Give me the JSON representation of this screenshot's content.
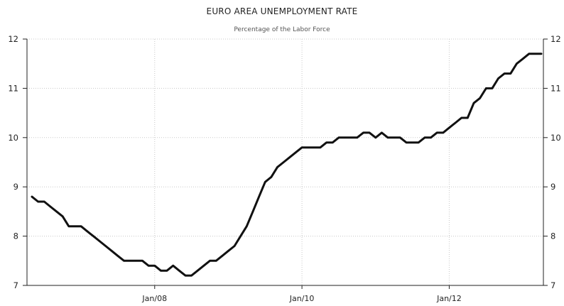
{
  "chart_data": {
    "type": "line",
    "title": "EURO AREA UNEMPLOYMENT RATE",
    "subtitle": "Percentage of the Labor Force",
    "xlabel": "",
    "ylabel": "",
    "ylim": [
      7,
      12
    ],
    "yticks": [
      7,
      8,
      9,
      10,
      11,
      12
    ],
    "xticks": [
      "Jan/08",
      "Jan/10",
      "Jan/12"
    ],
    "grid": true,
    "legend": "none",
    "line_color": "#111111",
    "series": [
      {
        "values": [
          8.8,
          8.7,
          8.7,
          8.6,
          8.5,
          8.4,
          8.2,
          8.2,
          8.2,
          8.1,
          8.0,
          7.9,
          7.8,
          7.7,
          7.6,
          7.5,
          7.5,
          7.5,
          7.5,
          7.4,
          7.4,
          7.3,
          7.3,
          7.4,
          7.3,
          7.2,
          7.2,
          7.3,
          7.4,
          7.5,
          7.5,
          7.6,
          7.7,
          7.8,
          8.0,
          8.2,
          8.5,
          8.8,
          9.1,
          9.2,
          9.4,
          9.5,
          9.6,
          9.7,
          9.8,
          9.8,
          9.8,
          9.8,
          9.9,
          9.9,
          10.0,
          10.0,
          10.0,
          10.0,
          10.1,
          10.1,
          10.0,
          10.1,
          10.0,
          10.0,
          10.0,
          9.9,
          9.9,
          9.9,
          10.0,
          10.0,
          10.1,
          10.1,
          10.2,
          10.3,
          10.4,
          10.4,
          10.7,
          10.8,
          11.0,
          11.0,
          11.2,
          11.3,
          11.3,
          11.5,
          11.6,
          11.7,
          11.7,
          11.7
        ]
      }
    ]
  }
}
